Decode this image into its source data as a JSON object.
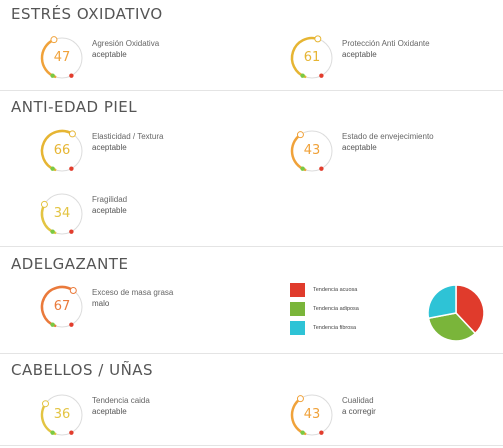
{
  "colors": {
    "orange": "#f0a23a",
    "deep_orange": "#ea7a3b",
    "yellow": "#e3c442",
    "green_dot": "#7ac943",
    "red_dot": "#e23d2d",
    "track": "#dcdcdc"
  },
  "sections": {
    "oxidative": {
      "title": "ESTRÉS OXIDATIVO"
    },
    "antiage": {
      "title": "ANTI-EDAD PIEL"
    },
    "slimming": {
      "title": "ADELGAZANTE"
    },
    "hair": {
      "title": "CABELLOS / UÑAS"
    }
  },
  "metrics": {
    "m1": {
      "value": "47",
      "label": "Agresión Oxidativa",
      "status": "aceptable",
      "level": 0.47,
      "color": "#f0a23a"
    },
    "m2": {
      "value": "61",
      "label": "Protección Anti Oxidante",
      "status": "aceptable",
      "level": 0.61,
      "color": "#e6b533"
    },
    "m3": {
      "value": "66",
      "label": "Elasticidad / Textura",
      "status": "aceptable",
      "level": 0.66,
      "color": "#e6b533"
    },
    "m4": {
      "value": "43",
      "label": "Estado de envejecimiento",
      "status": "aceptable",
      "level": 0.43,
      "color": "#f0a23a"
    },
    "m5": {
      "value": "34",
      "label": "Fragilidad",
      "status": "aceptable",
      "level": 0.34,
      "color": "#e3c442"
    },
    "m6": {
      "value": "67",
      "label": "Exceso de masa grasa",
      "status": "malo",
      "level": 0.67,
      "color": "#ea7a3b"
    },
    "m7": {
      "value": "36",
      "label": "Tendencia caida",
      "status": "aceptable",
      "level": 0.36,
      "color": "#e3c442"
    },
    "m8": {
      "value": "43",
      "label": "Cualidad",
      "status": "a corregir",
      "level": 0.43,
      "color": "#f0a23a"
    }
  },
  "chart_data": {
    "type": "pie",
    "categories": [
      "Tendencia acuosa",
      "Tendencia adiposa",
      "Tendencia fibrosa"
    ],
    "values": [
      38,
      34,
      28
    ],
    "colors": [
      "#e03b2c",
      "#7ab53a",
      "#2ec3d6"
    ],
    "legend": "left"
  }
}
